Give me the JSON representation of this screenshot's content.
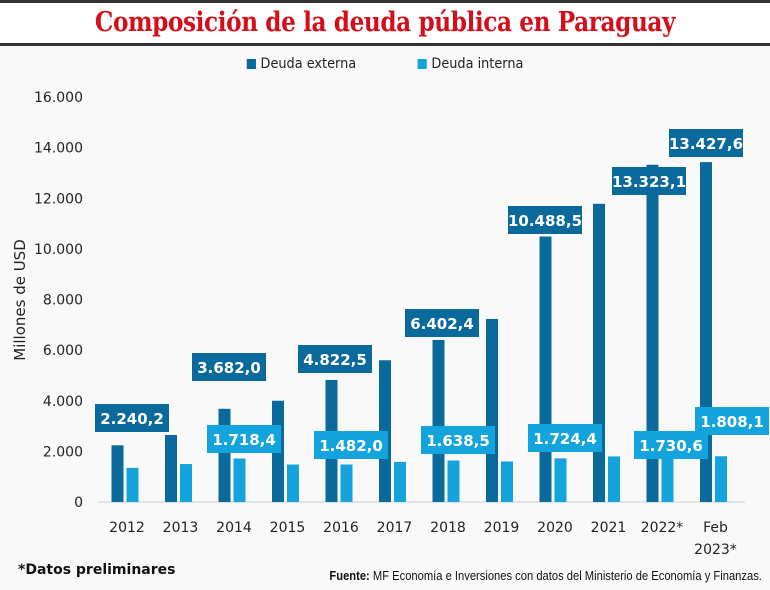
{
  "chart_data": {
    "type": "bar",
    "title": "Composición de la deuda pública en Paraguay",
    "xlabel": "",
    "ylabel": "Millones de USD",
    "ylim": [
      0,
      16000
    ],
    "yticks": [
      0,
      2000,
      4000,
      6000,
      8000,
      10000,
      12000,
      14000,
      16000
    ],
    "ytick_labels": [
      "0",
      "2.000",
      "4.000",
      "6.000",
      "8.000",
      "10.000",
      "12.000",
      "14.000",
      "16.000"
    ],
    "grid": false,
    "legend_position": "top-center",
    "categories": [
      "2012",
      "2013",
      "2014",
      "2015",
      "2016",
      "2017",
      "2018",
      "2019",
      "2020",
      "2021",
      "2022*",
      "Feb 2023*"
    ],
    "category_lines": [
      [
        "2012"
      ],
      [
        "2013"
      ],
      [
        "2014"
      ],
      [
        "2015"
      ],
      [
        "2016"
      ],
      [
        "2017"
      ],
      [
        "2018"
      ],
      [
        "2019"
      ],
      [
        "2020"
      ],
      [
        "2021"
      ],
      [
        "2022*"
      ],
      [
        "Feb",
        "2023*"
      ]
    ],
    "series": [
      {
        "name": "Deuda externa",
        "color": "#0a6a9c",
        "values": [
          2240.2,
          2650,
          3682.0,
          4000,
          4822.5,
          5600,
          6402.4,
          7230,
          10488.5,
          11780,
          13323.1,
          13427.6
        ],
        "labels": [
          "2.240,2",
          null,
          "3.682,0",
          null,
          "4.822,5",
          null,
          "6.402,4",
          null,
          "10.488,5",
          null,
          "13.323,1",
          "13.427,6"
        ]
      },
      {
        "name": "Deuda interna",
        "color": "#14a4dd",
        "values": [
          1350,
          1500,
          1718.4,
          1480,
          1482.0,
          1580,
          1638.5,
          1600,
          1724.4,
          1800,
          1730.6,
          1808.1
        ],
        "labels": [
          null,
          null,
          "1.718,4",
          null,
          "1.482,0",
          null,
          "1.638,5",
          null,
          "1.724,4",
          null,
          "1.730,6",
          "1.808,1"
        ]
      }
    ]
  },
  "footnote": "*Datos preliminares",
  "source": {
    "label": "Fuente:",
    "text": " MF Economía e Inversiones con datos del Ministerio de Economía y Finanzas."
  }
}
